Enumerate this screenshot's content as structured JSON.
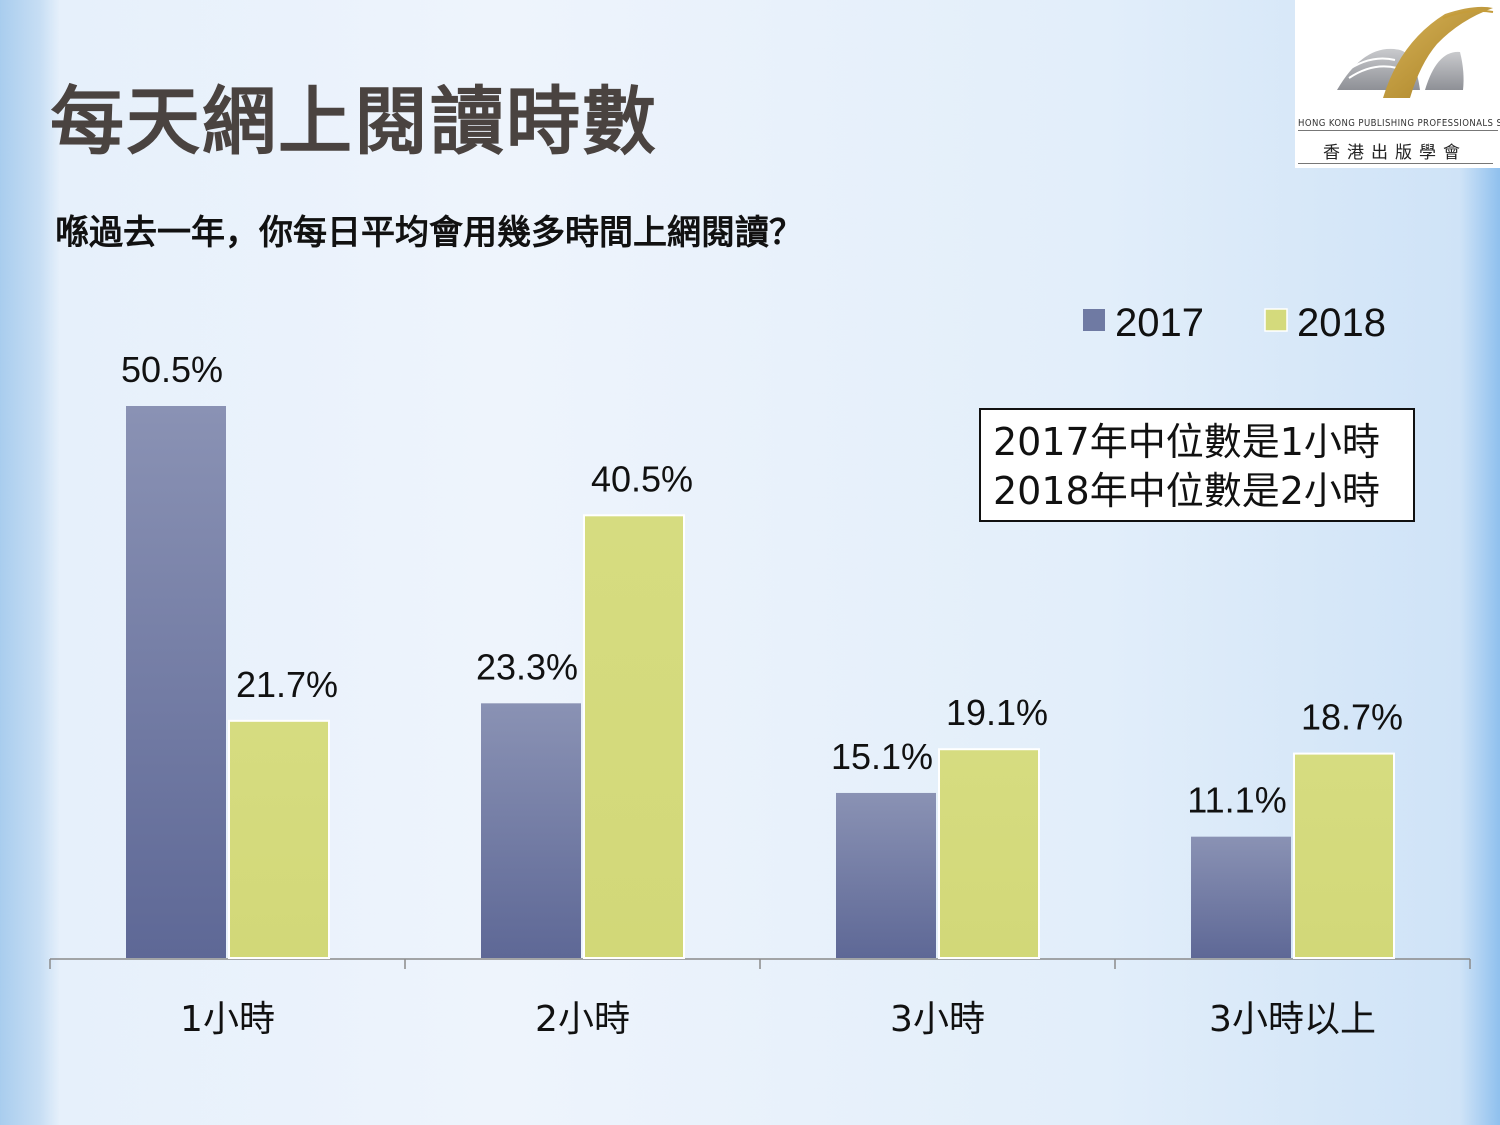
{
  "slide": {
    "title": "每天網上閱讀時數",
    "question": "喺過去一年，你每日平均會用幾多時間上網閱讀？"
  },
  "logo": {
    "en": "HONG KONG PUBLISHING PROFESSIONALS SOCIETY",
    "zh": "香港出版學會"
  },
  "annotation": {
    "line1": "2017年中位數是1小時",
    "line2": "2018年中位數是2小時"
  },
  "chart_data": {
    "type": "bar",
    "categories": [
      "1小時",
      "2小時",
      "3小時",
      "3小時以上"
    ],
    "series": [
      {
        "name": "2017",
        "values": [
          50.5,
          23.3,
          15.1,
          11.1
        ],
        "labels": [
          "50.5%",
          "23.3%",
          "15.1%",
          "11.1%"
        ],
        "color": "#6f7aa3"
      },
      {
        "name": "2018",
        "values": [
          21.7,
          40.5,
          19.1,
          18.7
        ],
        "labels": [
          "21.7%",
          "40.5%",
          "19.1%",
          "18.7%"
        ],
        "color": "#d4da7c"
      }
    ],
    "ylim": [
      0,
      50.5
    ],
    "legend": "top-right",
    "grid": false,
    "xlabel": "",
    "ylabel": ""
  }
}
